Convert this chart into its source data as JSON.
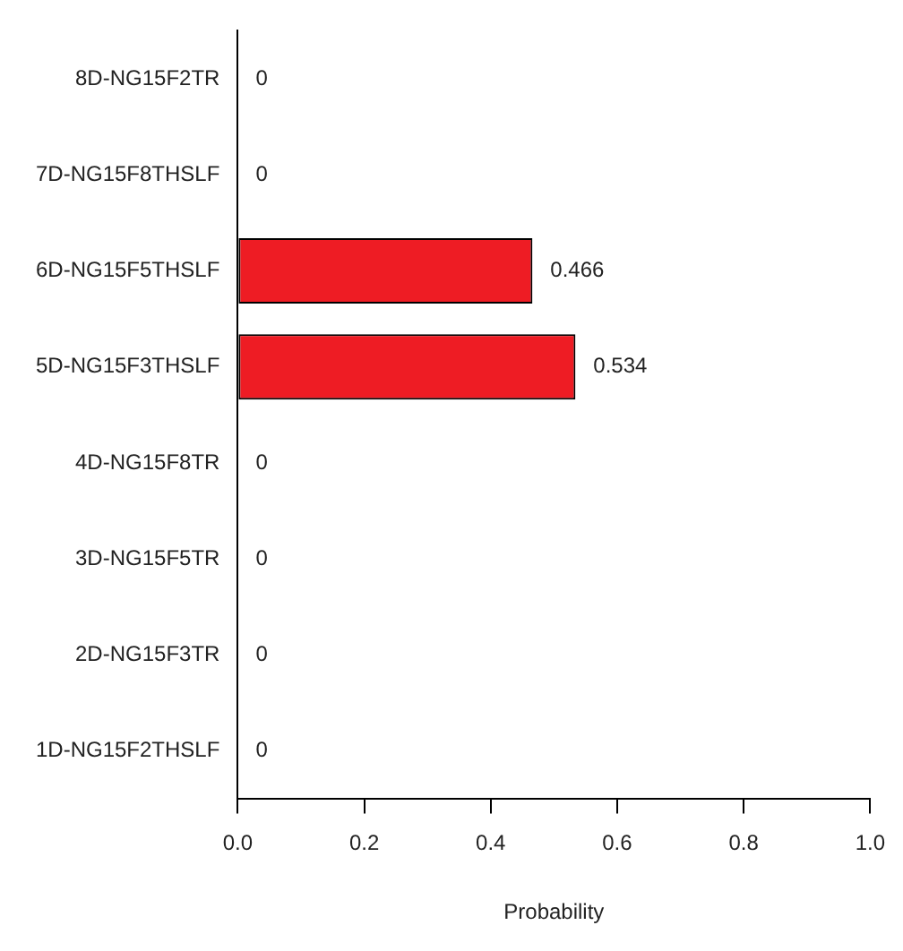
{
  "chart_data": {
    "type": "bar",
    "orientation": "horizontal",
    "xlabel": "Probability",
    "categories": [
      "8D-NG15F2TR",
      "7D-NG15F8THSLF",
      "6D-NG15F5THSLF",
      "5D-NG15F3THSLF",
      "4D-NG15F8TR",
      "3D-NG15F5TR",
      "2D-NG15F3TR",
      "1D-NG15F2THSLF"
    ],
    "values": [
      0,
      0,
      0.466,
      0.534,
      0,
      0,
      0,
      0
    ],
    "color": "#ee1c24",
    "xlim": [
      0,
      1
    ],
    "xticks": [
      {
        "value": 0,
        "label": "0.0"
      },
      {
        "value": 0.2,
        "label": "0.2"
      },
      {
        "value": 0.4,
        "label": "0.4"
      },
      {
        "value": 0.6,
        "label": "0.6"
      },
      {
        "value": 0.8,
        "label": "0.8"
      },
      {
        "value": 1,
        "label": "1.0"
      }
    ],
    "data_labels": true,
    "grid": false,
    "legend": false
  }
}
